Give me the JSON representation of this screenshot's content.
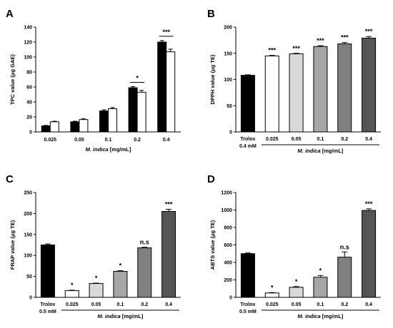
{
  "chart_data": [
    {
      "panel": "A",
      "type": "bar",
      "ylabel": "TPC value (μg GAE)",
      "xlabel_italic": "M. indica",
      "xlabel_rest": " [mg/mL]",
      "ylim": [
        0,
        140
      ],
      "yticks": [
        0,
        20,
        40,
        60,
        80,
        100,
        120,
        140
      ],
      "categories": [
        "0.025",
        "0.05",
        "0.1",
        "0.2",
        "0.4"
      ],
      "series": [
        {
          "color": "#000000",
          "values": [
            8,
            13.5,
            28,
            59,
            120
          ],
          "errors": [
            0.7,
            0.8,
            1.5,
            1.5,
            2
          ]
        },
        {
          "color": "#ffffff",
          "values": [
            13.5,
            16.5,
            31,
            53,
            107
          ],
          "errors": [
            0.8,
            1.2,
            1.5,
            2.5,
            3.5
          ]
        }
      ],
      "significance": [
        {
          "category": 3,
          "text": "*"
        },
        {
          "category": 4,
          "text": "***"
        }
      ]
    },
    {
      "panel": "B",
      "type": "bar",
      "ylabel": "DPPH value (μg TE)",
      "xlabel_italic": "M. indica",
      "xlabel_rest": " [mg/mL]",
      "ylim": [
        0,
        200
      ],
      "yticks": [
        0,
        50,
        100,
        150,
        200
      ],
      "control": {
        "label": "Trolox",
        "sublabel": "0.4 mM",
        "value": 108,
        "error": 1,
        "color": "#000000"
      },
      "categories": [
        "0.025",
        "0.05",
        "0.1",
        "0.2",
        "0.4"
      ],
      "values": [
        145,
        149,
        163,
        168,
        179
      ],
      "errors": [
        1,
        1,
        1.5,
        2.5,
        3
      ],
      "colors": [
        "#ffffff",
        "#d9d9d9",
        "#a6a6a6",
        "#808080",
        "#555555"
      ],
      "significance": [
        "***",
        "***",
        "***",
        "***",
        "***"
      ]
    },
    {
      "panel": "C",
      "type": "bar",
      "ylabel": "FRAP value (μg TE)",
      "xlabel_italic": "M. indica",
      "xlabel_rest": " [mg/mL]",
      "ylim": [
        0,
        250
      ],
      "yticks": [
        0,
        50,
        100,
        150,
        200,
        250
      ],
      "control": {
        "label": "Trolox",
        "sublabel": "0.5 mM",
        "value": 125,
        "error": 2.5,
        "color": "#000000"
      },
      "categories": [
        "0.025",
        "0.05",
        "0.1",
        "0.2",
        "0.4"
      ],
      "values": [
        16,
        33,
        62,
        118,
        205
      ],
      "errors": [
        1,
        1,
        1.5,
        1.5,
        5
      ],
      "colors": [
        "#ffffff",
        "#d9d9d9",
        "#a6a6a6",
        "#808080",
        "#555555"
      ],
      "significance": [
        "*",
        "*",
        "*",
        "n.s",
        "***"
      ]
    },
    {
      "panel": "D",
      "type": "bar",
      "ylabel": "ABTS value (μg TE)",
      "xlabel_italic": "M. indica",
      "xlabel_rest": " [mg/mL]",
      "ylim": [
        0,
        1200
      ],
      "yticks": [
        0,
        200,
        400,
        600,
        800,
        1000,
        1200
      ],
      "control": {
        "label": "Trolox",
        "sublabel": "0.5 mM",
        "value": 500,
        "error": 8,
        "color": "#000000"
      },
      "categories": [
        "0.025",
        "0.05",
        "0.1",
        "0.2",
        "0.4"
      ],
      "values": [
        50,
        115,
        230,
        460,
        995
      ],
      "errors": [
        5,
        8,
        20,
        60,
        18
      ],
      "colors": [
        "#ffffff",
        "#d9d9d9",
        "#a6a6a6",
        "#808080",
        "#555555"
      ],
      "significance": [
        "*",
        "*",
        "*",
        "n.s",
        "***"
      ]
    }
  ]
}
